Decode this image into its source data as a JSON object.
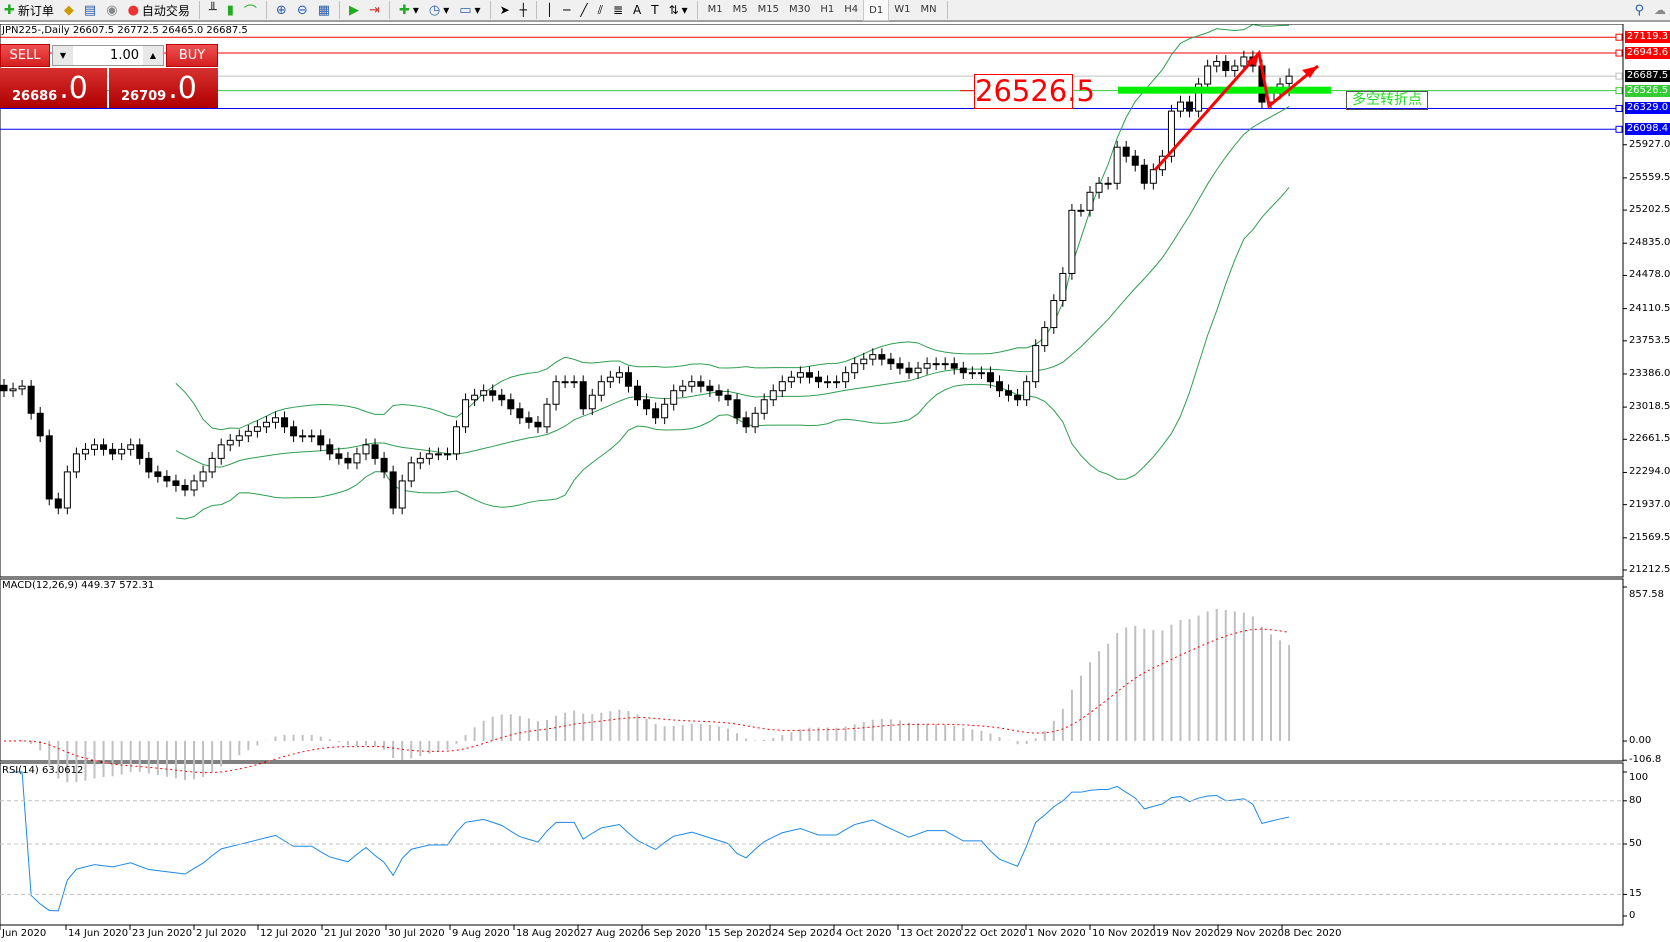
{
  "toolbar": {
    "new_order": "新订单",
    "auto_trading": "自动交易",
    "timeframes": [
      "M1",
      "M5",
      "M15",
      "M30",
      "H1",
      "H4",
      "D1",
      "W1",
      "MN"
    ],
    "active_timeframe": "D1"
  },
  "chart_header": "JPN225-,Daily  26607.5 26772.5 26465.0 26687.5",
  "trade_panel": {
    "sell_label": "SELL",
    "buy_label": "BUY",
    "lot": "1.00",
    "sell_price_main": "26686",
    "sell_price_frac": ".0",
    "buy_price_main": "26709",
    "buy_price_frac": ".0",
    "color": "#d42020"
  },
  "price_axis_labels": [
    "25927.0",
    "25559.5",
    "25202.5",
    "24835.0",
    "24478.0",
    "24110.5",
    "23753.5",
    "23386.0",
    "23018.5",
    "22661.5",
    "22294.0",
    "21937.0",
    "21569.5",
    "21212.5"
  ],
  "price_lines": [
    {
      "label": "27119.3",
      "value": 27119.3,
      "color": "#ff0000"
    },
    {
      "label": "26943.6",
      "value": 26943.6,
      "color": "#ff0000"
    },
    {
      "label": "26687.5",
      "value": 26687.5,
      "color": "#000000"
    },
    {
      "label": "26526.5",
      "value": 26526.5,
      "color": "#33cc33"
    },
    {
      "label": "26329.0",
      "value": 26329.0,
      "color": "#0000ff"
    },
    {
      "label": "26098.4",
      "value": 26098.4,
      "color": "#0000ff"
    }
  ],
  "annotations": {
    "price_box": "26526.5",
    "text_label": "多空转折点"
  },
  "macd": {
    "label": "MACD(12,26,9) 449.37 572.31",
    "axis": [
      "857.58",
      "0.00",
      "-106.8"
    ]
  },
  "rsi": {
    "label": "RSI(14) 63.0612",
    "axis": [
      "100",
      "80",
      "50",
      "15",
      "0"
    ]
  },
  "date_labels": [
    "Jun 2020",
    "14 Jun 2020",
    "23 Jun 2020",
    "2 Jul 2020",
    "12 Jul 2020",
    "21 Jul 2020",
    "30 Jul 2020",
    "9 Aug 2020",
    "18 Aug 2020",
    "27 Aug 2020",
    "6 Sep 2020",
    "15 Sep 2020",
    "24 Sep 2020",
    "4 Oct 2020",
    "13 Oct 2020",
    "22 Oct 2020",
    "1 Nov 2020",
    "10 Nov 2020",
    "19 Nov 2020",
    "29 Nov 2020",
    "8 Dec 2020"
  ],
  "chart_data": {
    "type": "candlestick",
    "symbol": "JPN225-",
    "timeframe": "Daily",
    "ylim": [
      21212.5,
      27119.3
    ],
    "last_bar": {
      "open": 26607.5,
      "high": 26772.5,
      "low": 26465.0,
      "close": 26687.5
    },
    "closes": [
      23200,
      23220,
      23250,
      22950,
      22700,
      22000,
      21900,
      22300,
      22500,
      22550,
      22600,
      22550,
      22500,
      22550,
      22600,
      22450,
      22300,
      22250,
      22200,
      22150,
      22100,
      22200,
      22300,
      22450,
      22600,
      22650,
      22700,
      22750,
      22800,
      22850,
      22900,
      22800,
      22700,
      22700,
      22700,
      22600,
      22500,
      22450,
      22400,
      22500,
      22600,
      22450,
      22300,
      21900,
      22200,
      22400,
      22450,
      22500,
      22500,
      22500,
      22800,
      23100,
      23150,
      23200,
      23150,
      23100,
      23000,
      22900,
      22850,
      22800,
      23050,
      23300,
      23300,
      23300,
      23000,
      23150,
      23300,
      23350,
      23400,
      23250,
      23100,
      23000,
      22900,
      23050,
      23200,
      23250,
      23300,
      23250,
      23200,
      23150,
      23100,
      22900,
      22800,
      22950,
      23100,
      23200,
      23300,
      23350,
      23400,
      23350,
      23300,
      23300,
      23300,
      23400,
      23500,
      23550,
      23600,
      23550,
      23500,
      23450,
      23400,
      23450,
      23500,
      23500,
      23500,
      23450,
      23400,
      23400,
      23400,
      23300,
      23200,
      23150,
      23100,
      23300,
      23700,
      23900,
      24200,
      24500,
      25200,
      25200,
      25400,
      25500,
      25500,
      25900,
      25800,
      25700,
      25500,
      25650,
      25800,
      26300,
      26400,
      26300,
      26600,
      26800,
      26850,
      26750,
      26800,
      26900,
      26800,
      26400,
      26500,
      26600,
      26687.5
    ],
    "indicators": [
      "Bollinger Bands(20,2)",
      "MACD(12,26,9)",
      "RSI(14)"
    ],
    "colors": {
      "bands": "#2e9e4f",
      "macd_hist": "#c0c0c0",
      "macd_signal": "#ff0000",
      "rsi": "#1e88e5"
    }
  }
}
